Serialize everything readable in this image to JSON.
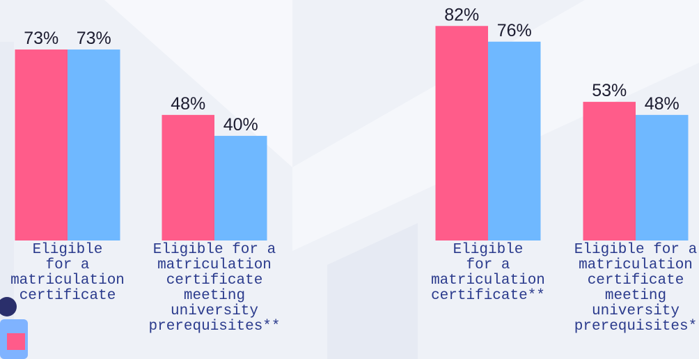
{
  "chart_data": [
    {
      "type": "bar",
      "categories": [
        "Eligible\nfor a\nmatriculation\ncertificate",
        "Eligible for a\nmatriculation\ncertificate\nmeeting\nuniversity\nprerequisites**"
      ],
      "series": [
        {
          "color": "#ff5c8a",
          "values": [
            73,
            48
          ],
          "value_labels": [
            "73%",
            "48%"
          ]
        },
        {
          "color": "#6fb8ff",
          "values": [
            73,
            40
          ],
          "value_labels": [
            "73%",
            "40%"
          ]
        }
      ]
    },
    {
      "type": "bar",
      "categories": [
        "Eligible\nfor a\nmatriculation\ncertificate**",
        "Eligible for a\nmatriculation\ncertificate\nmeeting\nuniversity\nprerequisites*"
      ],
      "series": [
        {
          "color": "#ff5c8a",
          "values": [
            82,
            53
          ],
          "value_labels": [
            "82%",
            "53%"
          ]
        },
        {
          "color": "#6fb8ff",
          "values": [
            76,
            48
          ],
          "value_labels": [
            "76%",
            "48%"
          ]
        }
      ]
    }
  ]
}
